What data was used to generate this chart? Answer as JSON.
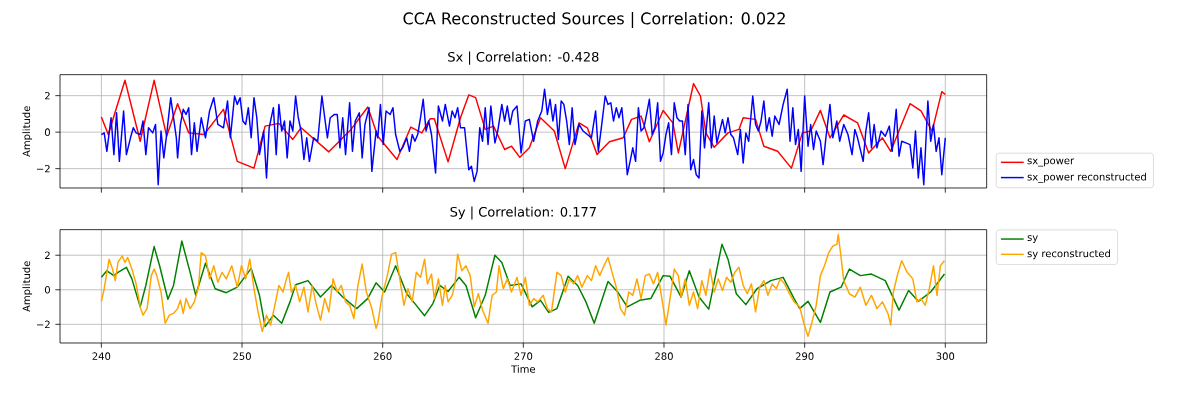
{
  "chart_data": [
    {
      "type": "line",
      "title": "CCA Reconstructed Sources | Correlation: 0.022",
      "subtitle": "Sx | Correlation: -0.428",
      "ylabel": "Amplitude",
      "xlim": [
        237.06,
        302.94
      ],
      "xticks": [
        240,
        250,
        260,
        270,
        280,
        290,
        300
      ],
      "ylim": [
        -3.06,
        3.15
      ],
      "yticks": [
        {
          "value": -2,
          "label": "−2"
        },
        0,
        2
      ],
      "tick_labels": "y",
      "grid": true,
      "legend": "bottom right",
      "series": [
        {
          "name": "sx_power",
          "color": "#ff0000",
          "x": [
            240.0,
            240.49,
            241.68,
            242.76,
            243.75,
            244.64,
            245.42,
            246.21,
            247.3,
            248.68,
            249.66,
            250.85,
            251.64,
            252.62,
            253.61,
            254.2,
            256.17,
            257.75,
            258.94,
            259.65,
            261.02,
            262.0,
            262.78,
            263.37,
            263.67,
            264.65,
            265.53,
            266.12,
            266.61,
            267.29,
            267.88,
            268.67,
            269.16,
            269.75,
            270.43,
            271.22,
            272.2,
            272.98,
            273.96,
            274.55,
            275.24,
            276.12,
            277.1,
            277.69,
            278.37,
            278.96,
            279.94,
            280.63,
            281.02,
            281.8,
            282.1,
            282.59,
            282.98,
            283.57,
            284.55,
            285.33,
            285.63,
            286.51,
            287.1,
            288.08,
            289.06,
            289.84,
            290.43,
            291.12,
            291.8,
            292.78,
            293.76,
            294.55,
            295.53,
            296.12,
            297.49,
            298.27,
            299.06,
            299.75,
            300.0
          ],
          "values": [
            0.83,
            -0.13,
            2.84,
            -0.5,
            2.84,
            -0.22,
            1.56,
            -0.04,
            -0.13,
            1.25,
            -1.6,
            -1.97,
            0.33,
            0.48,
            -0.4,
            0.24,
            -1.08,
            0.15,
            1.38,
            -0.22,
            -1.5,
            0.28,
            -0.04,
            0.73,
            0.73,
            -1.63,
            0.79,
            2.04,
            1.89,
            0.15,
            0.33,
            -0.95,
            -0.77,
            -1.38,
            -0.86,
            0.79,
            0.06,
            -2.0,
            0.51,
            0.24,
            -1.23,
            -0.53,
            -0.31,
            0.7,
            0.88,
            -0.53,
            1.19,
            0.51,
            -1.14,
            1.61,
            2.66,
            1.98,
            -0.04,
            -0.83,
            -0.04,
            0.15,
            0.79,
            0.7,
            -0.77,
            -1.05,
            -1.97,
            -0.04,
            0.06,
            1.19,
            -0.31,
            0.94,
            0.51,
            -1.14,
            -0.31,
            -1.05,
            1.56,
            1.16,
            0.06,
            2.22,
            2.06
          ]
        },
        {
          "name": "sx_power reconstructed",
          "color": "#0000ff",
          "x": [
            240.0,
            240.2,
            240.39,
            240.69,
            240.89,
            241.08,
            241.28,
            241.58,
            241.78,
            242.07,
            242.27,
            242.47,
            242.76,
            242.96,
            243.16,
            243.35,
            243.65,
            243.85,
            244.04,
            244.24,
            244.44,
            244.64,
            244.93,
            245.13,
            245.33,
            245.42,
            245.62,
            245.82,
            246.02,
            246.21,
            246.41,
            246.61,
            246.8,
            247.1,
            247.4,
            247.69,
            247.99,
            248.28,
            248.68,
            248.97,
            249.17,
            249.47,
            249.66,
            249.86,
            250.06,
            250.26,
            250.45,
            250.65,
            250.85,
            251.05,
            251.24,
            251.54,
            251.74,
            251.93,
            252.23,
            252.43,
            252.62,
            252.82,
            253.02,
            253.21,
            253.41,
            253.61,
            253.81,
            254.0,
            254.2,
            254.4,
            254.6,
            254.79,
            255.09,
            255.38,
            255.68,
            255.88,
            256.07,
            256.27,
            256.57,
            256.77,
            256.96,
            257.16,
            257.36,
            257.65,
            257.85,
            258.05,
            258.34,
            258.54,
            258.74,
            259.03,
            259.23,
            259.53,
            259.65,
            259.84,
            260.04,
            260.24,
            260.53,
            260.73,
            260.92,
            261.22,
            261.41,
            261.71,
            261.9,
            262.1,
            262.29,
            262.49,
            262.69,
            262.88,
            263.08,
            263.27,
            263.47,
            263.76,
            263.96,
            264.25,
            264.45,
            264.75,
            264.94,
            265.14,
            265.33,
            265.53,
            265.82,
            266.12,
            266.31,
            266.51,
            266.71,
            266.9,
            267.1,
            267.29,
            267.49,
            267.69,
            267.98,
            268.18,
            268.47,
            268.67,
            268.86,
            269.06,
            269.25,
            269.55,
            269.84,
            270.14,
            270.43,
            270.73,
            271.02,
            271.31,
            271.51,
            271.71,
            271.9,
            272.1,
            272.29,
            272.49,
            272.69,
            272.88,
            273.08,
            273.27,
            273.47,
            273.67,
            273.96,
            274.25,
            274.55,
            274.84,
            275.14,
            275.33,
            275.53,
            275.82,
            276.02,
            276.22,
            276.41,
            276.61,
            276.8,
            277.0,
            277.2,
            277.39,
            277.59,
            277.78,
            277.98,
            278.18,
            278.37,
            278.57,
            278.76,
            278.96,
            279.16,
            279.35,
            279.55,
            279.75,
            279.94,
            280.14,
            280.33,
            280.53,
            280.73,
            280.92,
            281.12,
            281.31,
            281.51,
            281.71,
            281.9,
            282.1,
            282.29,
            282.49,
            282.69,
            282.88,
            283.18,
            283.37,
            283.57,
            283.76,
            283.96,
            284.16,
            284.35,
            284.55,
            284.75,
            284.94,
            285.24,
            285.43,
            285.63,
            285.82,
            286.02,
            286.31,
            286.51,
            286.71,
            286.9,
            287.1,
            287.29,
            287.49,
            287.69,
            287.88,
            288.18,
            288.47,
            288.76,
            288.96,
            289.16,
            289.35,
            289.55,
            289.75,
            290.0,
            290.24,
            290.43,
            290.63,
            290.82,
            291.12,
            291.31,
            291.51,
            291.8,
            292.0,
            292.29,
            292.49,
            292.78,
            293.08,
            293.37,
            293.57,
            293.76,
            294.16,
            294.35,
            294.55,
            294.75,
            294.94,
            295.14,
            295.43,
            295.73,
            296.02,
            296.22,
            296.51,
            296.71,
            296.9,
            297.2,
            297.49,
            297.69,
            297.88,
            298.08,
            298.27,
            298.47,
            298.76,
            298.96,
            299.16,
            299.35,
            299.55,
            299.75,
            300.0
          ],
          "values": [
            -0.13,
            -0.04,
            -1.05,
            0.79,
            -1.23,
            1.06,
            -1.6,
            1.16,
            -1.23,
            -0.31,
            0.24,
            -0.04,
            -0.13,
            0.61,
            -1.23,
            0.24,
            -0.04,
            0.42,
            -2.88,
            0.06,
            -1.41,
            -0.13,
            1.89,
            0.79,
            -0.31,
            -1.41,
            0.42,
            1.25,
            0.97,
            1.34,
            -1.23,
            0.51,
            -1.05,
            0.79,
            -0.31,
            1.16,
            1.89,
            0.42,
            0.24,
            1.71,
            -0.31,
            1.98,
            1.52,
            1.89,
            0.61,
            0.42,
            1.34,
            -0.31,
            1.89,
            0.79,
            -1.23,
            0.06,
            -2.51,
            0.24,
            1.34,
            -1.23,
            1.52,
            0.06,
            0.61,
            -1.41,
            0.61,
            0.06,
            1.98,
            0.79,
            0.06,
            -1.5,
            -0.31,
            -1.6,
            -0.31,
            -0.5,
            1.98,
            0.79,
            -0.31,
            0.79,
            0.97,
            0.97,
            -0.86,
            0.79,
            -1.23,
            1.61,
            -1.05,
            0.61,
            1.06,
            -1.41,
            0.42,
            1.34,
            -2.15,
            0.06,
            -0.31,
            1.52,
            -0.68,
            1.16,
            0.97,
            1.34,
            -0.13,
            -1.05,
            -0.86,
            -0.31,
            -1.05,
            -0.13,
            -0.5,
            -0.13,
            0.79,
            1.8,
            0.06,
            0.61,
            -0.13,
            -2.24,
            1.43,
            0.61,
            1.52,
            0.33,
            1.16,
            0.79,
            1.34,
            0.24,
            0.24,
            -2.06,
            -1.87,
            -2.7,
            -2.15,
            0.24,
            -0.5,
            1.34,
            -0.68,
            1.43,
            -0.59,
            0.06,
            1.52,
            0.61,
            1.43,
            0.42,
            1.16,
            1.43,
            -1.14,
            0.61,
            0.7,
            -0.5,
            0.61,
            1.16,
            2.35,
            0.97,
            1.8,
            0.61,
            1.52,
            -0.4,
            1.71,
            1.52,
            0.61,
            -0.68,
            1.34,
            -0.68,
            0.42,
            0.06,
            -0.13,
            -0.31,
            1.16,
            -1.05,
            0.15,
            1.98,
            1.52,
            1.61,
            0.61,
            1.34,
            0.79,
            1.34,
            -0.31,
            -2.33,
            -1.6,
            -0.86,
            -1.6,
            1.34,
            0.06,
            0.24,
            0.97,
            1.8,
            -0.13,
            0.24,
            1.61,
            -1.6,
            -1.14,
            -0.13,
            0.51,
            -1.23,
            1.61,
            0.79,
            0.61,
            0.61,
            -1.23,
            1.52,
            -2.06,
            -1.5,
            -2.33,
            -2.51,
            1.16,
            -0.86,
            1.61,
            -0.86,
            0.88,
            -0.59,
            0.06,
            0.7,
            -0.04,
            0.79,
            -0.13,
            -0.31,
            -1.23,
            0.15,
            -1.69,
            -0.04,
            -0.5,
            1.98,
            0.42,
            0.06,
            0.61,
            1.71,
            0.06,
            0.79,
            -0.22,
            0.88,
            0.42,
            1.52,
            2.35,
            -0.5,
            1.34,
            -0.68,
            0.15,
            -2.15,
            1.98,
            -0.77,
            0.42,
            -0.95,
            0.06,
            -0.5,
            -1.78,
            -0.31,
            1.52,
            -0.31,
            0.61,
            -0.5,
            0.42,
            -0.13,
            -1.23,
            0.15,
            -0.31,
            -1.6,
            0.06,
            1.06,
            -0.86,
            0.42,
            -0.86,
            0.06,
            -0.22,
            0.33,
            -1.05,
            1.25,
            -1.32,
            -0.5,
            -0.59,
            -0.68,
            -1.96,
            0.06,
            -2.51,
            -0.86,
            -2.88,
            1.71,
            -0.5,
            0.42,
            -1.05,
            -0.31,
            -2.33,
            -0.31
          ]
        }
      ]
    },
    {
      "type": "line",
      "title": "Sy | Correlation: 0.177",
      "xlabel": "Time",
      "ylabel": "Amplitude",
      "xlim": [
        237.06,
        302.94
      ],
      "xticks": [
        240,
        250,
        260,
        270,
        280,
        290,
        300
      ],
      "ylim": [
        -3.08,
        3.48
      ],
      "yticks": [
        {
          "value": -2,
          "label": "−2"
        },
        0,
        2
      ],
      "grid": true,
      "legend": "top right",
      "series": [
        {
          "name": "sy",
          "color": "#008000",
          "x": [
            240.0,
            240.39,
            240.89,
            241.18,
            241.78,
            242.17,
            242.76,
            243.16,
            243.75,
            244.14,
            244.73,
            245.13,
            245.72,
            246.31,
            246.71,
            247.4,
            248.09,
            248.88,
            249.66,
            250.65,
            251.24,
            251.64,
            252.23,
            252.82,
            253.41,
            253.81,
            254.69,
            255.58,
            256.37,
            257.16,
            258.15,
            258.93,
            259.53,
            260.14,
            260.92,
            261.71,
            262.29,
            262.98,
            263.57,
            264.06,
            264.65,
            265.43,
            265.92,
            266.61,
            267.29,
            267.98,
            268.47,
            269.06,
            269.84,
            270.63,
            271.22,
            271.8,
            272.39,
            273.18,
            273.86,
            274.45,
            275.04,
            276.02,
            276.71,
            277.39,
            278.27,
            279.06,
            279.94,
            280.43,
            281.22,
            281.8,
            282.49,
            283.18,
            284.12,
            284.55,
            285.14,
            285.82,
            286.61,
            287.59,
            288.47,
            289.25,
            289.65,
            290.24,
            291.12,
            291.8,
            292.59,
            293.18,
            293.96,
            294.75,
            295.73,
            296.71,
            297.39,
            298.08,
            298.96,
            299.94
          ],
          "values": [
            0.72,
            1.1,
            0.82,
            1.01,
            1.3,
            0.63,
            -0.99,
            0.25,
            2.5,
            1.39,
            -0.55,
            0.25,
            2.82,
            1.01,
            -0.32,
            1.54,
            0.06,
            -0.17,
            0.15,
            1.24,
            -0.32,
            -2.13,
            -1.47,
            -1.94,
            -0.7,
            0.29,
            0.53,
            -0.42,
            0.25,
            -0.42,
            -1.09,
            -0.51,
            0.4,
            -0.13,
            1.39,
            -0.23,
            -0.8,
            -1.5,
            -0.8,
            0.25,
            -0.1,
            0.72,
            0.25,
            -1.62,
            -0.32,
            2.0,
            1.58,
            0.25,
            0.34,
            -0.99,
            -0.61,
            -1.31,
            -1.09,
            0.78,
            0.25,
            -0.7,
            -1.94,
            0.48,
            -0.13,
            -0.99,
            -0.61,
            -0.51,
            0.82,
            0.78,
            -0.42,
            1.1,
            -0.42,
            -1.12,
            2.63,
            1.77,
            -0.23,
            -0.86,
            0.06,
            0.53,
            0.72,
            -0.51,
            -1.09,
            -0.67,
            -1.89,
            -0.13,
            0.15,
            1.2,
            0.82,
            0.91,
            0.53,
            -1.18,
            -0.04,
            -0.67,
            -0.13,
            0.91
          ]
        },
        {
          "name": "sy reconstructed",
          "color": "#ffa500",
          "x": [
            240.0,
            240.2,
            240.55,
            240.79,
            240.99,
            241.18,
            241.48,
            241.68,
            241.87,
            242.17,
            242.47,
            242.76,
            242.96,
            243.25,
            243.55,
            243.75,
            243.94,
            244.24,
            244.54,
            244.83,
            245.13,
            245.42,
            245.62,
            245.82,
            246.02,
            246.31,
            246.61,
            246.9,
            247.1,
            247.4,
            247.69,
            247.99,
            248.28,
            248.58,
            248.88,
            249.27,
            249.66,
            249.96,
            250.26,
            250.55,
            250.85,
            251.14,
            251.44,
            251.74,
            252.03,
            252.33,
            252.62,
            252.92,
            253.12,
            253.31,
            253.51,
            253.81,
            254.1,
            254.4,
            254.69,
            254.99,
            255.29,
            255.58,
            255.88,
            256.17,
            256.47,
            256.77,
            257.06,
            257.36,
            257.65,
            257.95,
            258.24,
            258.54,
            258.84,
            259.23,
            259.53,
            259.65,
            259.94,
            260.33,
            260.63,
            260.92,
            261.22,
            261.51,
            261.8,
            262.1,
            262.39,
            262.69,
            262.98,
            263.18,
            263.47,
            263.67,
            263.96,
            264.25,
            264.45,
            264.65,
            264.94,
            265.14,
            265.33,
            265.63,
            265.92,
            266.22,
            266.51,
            266.8,
            267.1,
            267.49,
            267.78,
            268.08,
            268.27,
            268.57,
            268.86,
            269.16,
            269.55,
            269.84,
            270.14,
            270.43,
            270.73,
            271.02,
            271.41,
            271.71,
            272.0,
            272.39,
            272.69,
            272.98,
            273.27,
            273.57,
            273.86,
            274.16,
            274.55,
            274.84,
            275.14,
            275.43,
            275.73,
            276.02,
            276.31,
            276.61,
            276.9,
            277.2,
            277.49,
            277.78,
            278.08,
            278.37,
            278.67,
            278.96,
            279.25,
            279.55,
            279.94,
            280.14,
            280.43,
            280.73,
            281.02,
            281.22,
            281.51,
            281.8,
            282.1,
            282.39,
            282.69,
            282.98,
            283.27,
            283.57,
            283.86,
            284.16,
            284.45,
            284.75,
            285.04,
            285.33,
            285.63,
            285.92,
            286.22,
            286.51,
            286.8,
            287.1,
            287.39,
            287.69,
            287.98,
            288.27,
            288.57,
            288.86,
            289.25,
            289.65,
            289.94,
            290.24,
            290.53,
            290.82,
            291.12,
            291.41,
            291.71,
            292.0,
            292.29,
            292.39,
            292.59,
            292.78,
            293.18,
            293.57,
            293.96,
            294.35,
            294.75,
            295.14,
            295.53,
            295.92,
            296.12,
            296.31,
            296.61,
            296.9,
            297.29,
            297.69,
            297.98,
            298.27,
            298.57,
            298.86,
            299.16,
            299.41,
            299.65,
            299.94
          ],
          "values": [
            -0.67,
            0.06,
            1.77,
            1.2,
            0.53,
            1.58,
            1.96,
            1.58,
            1.87,
            1.2,
            0.34,
            -0.99,
            -1.47,
            -1.09,
            0.82,
            1.2,
            0.82,
            -0.13,
            -1.94,
            -1.47,
            -1.37,
            -1.09,
            -0.61,
            -1.37,
            -0.51,
            -1.09,
            -0.7,
            0.15,
            2.15,
            1.96,
            0.63,
            1.39,
            0.44,
            1.01,
            0.63,
            1.39,
            0.15,
            1.39,
            0.63,
            1.77,
            0.06,
            -1.28,
            -2.42,
            -1.47,
            -2.04,
            -0.9,
            0.25,
            -0.13,
            0.53,
            1.01,
            -0.13,
            0.25,
            -0.7,
            0.15,
            -1.28,
            0.25,
            -0.9,
            -1.75,
            -0.51,
            -1.28,
            0.63,
            -0.13,
            0.25,
            -0.7,
            -0.9,
            -1.66,
            0.25,
            1.49,
            -0.13,
            -1.09,
            -2.23,
            -1.94,
            -0.42,
            0.82,
            2.06,
            2.15,
            0.63,
            -0.9,
            0.06,
            -0.7,
            1.01,
            0.72,
            1.77,
            0.34,
            0.91,
            -0.51,
            0.63,
            -0.9,
            0.25,
            -0.7,
            -0.32,
            0.34,
            2.06,
            1.1,
            1.39,
            0.82,
            -0.99,
            -0.23,
            -1.18,
            -1.94,
            -0.32,
            -0.13,
            1.39,
            0.06,
            0.63,
            -0.13,
            0.72,
            -0.32,
            0.72,
            -0.9,
            -0.51,
            -0.7,
            -0.32,
            -1.09,
            -1.28,
            1.01,
            0.82,
            -0.13,
            0.63,
            0.34,
            0.82,
            0.15,
            0.82,
            0.53,
            1.39,
            0.82,
            1.39,
            1.87,
            1.01,
            0.15,
            -1.09,
            -1.47,
            -0.13,
            -0.32,
            0.63,
            -0.51,
            0.82,
            0.91,
            0.34,
            1.01,
            -0.99,
            -2.04,
            -0.51,
            1.2,
            0.82,
            -0.42,
            0.63,
            -0.9,
            -0.13,
            -1.09,
            0.53,
            -0.32,
            1.2,
            -0.13,
            0.63,
            -0.04,
            0.72,
            0.44,
            1.01,
            1.3,
            0.25,
            -0.23,
            0.34,
            -1.28,
            0.15,
            0.53,
            -0.32,
            0.34,
            0.06,
            0.63,
            0.34,
            -0.13,
            -0.7,
            -0.99,
            -1.94,
            -2.7,
            -1.85,
            -0.9,
            0.82,
            1.39,
            2.15,
            2.53,
            2.63,
            3.2,
            1.87,
            0.53,
            -0.23,
            -0.42,
            0.15,
            -0.9,
            -0.32,
            -1.09,
            -0.7,
            -1.37,
            -2.04,
            -0.13,
            0.91,
            1.68,
            1.01,
            0.63,
            -0.7,
            -0.51,
            -0.9,
            0.06,
            1.39,
            -0.32,
            1.39,
            1.68
          ]
        }
      ]
    }
  ]
}
